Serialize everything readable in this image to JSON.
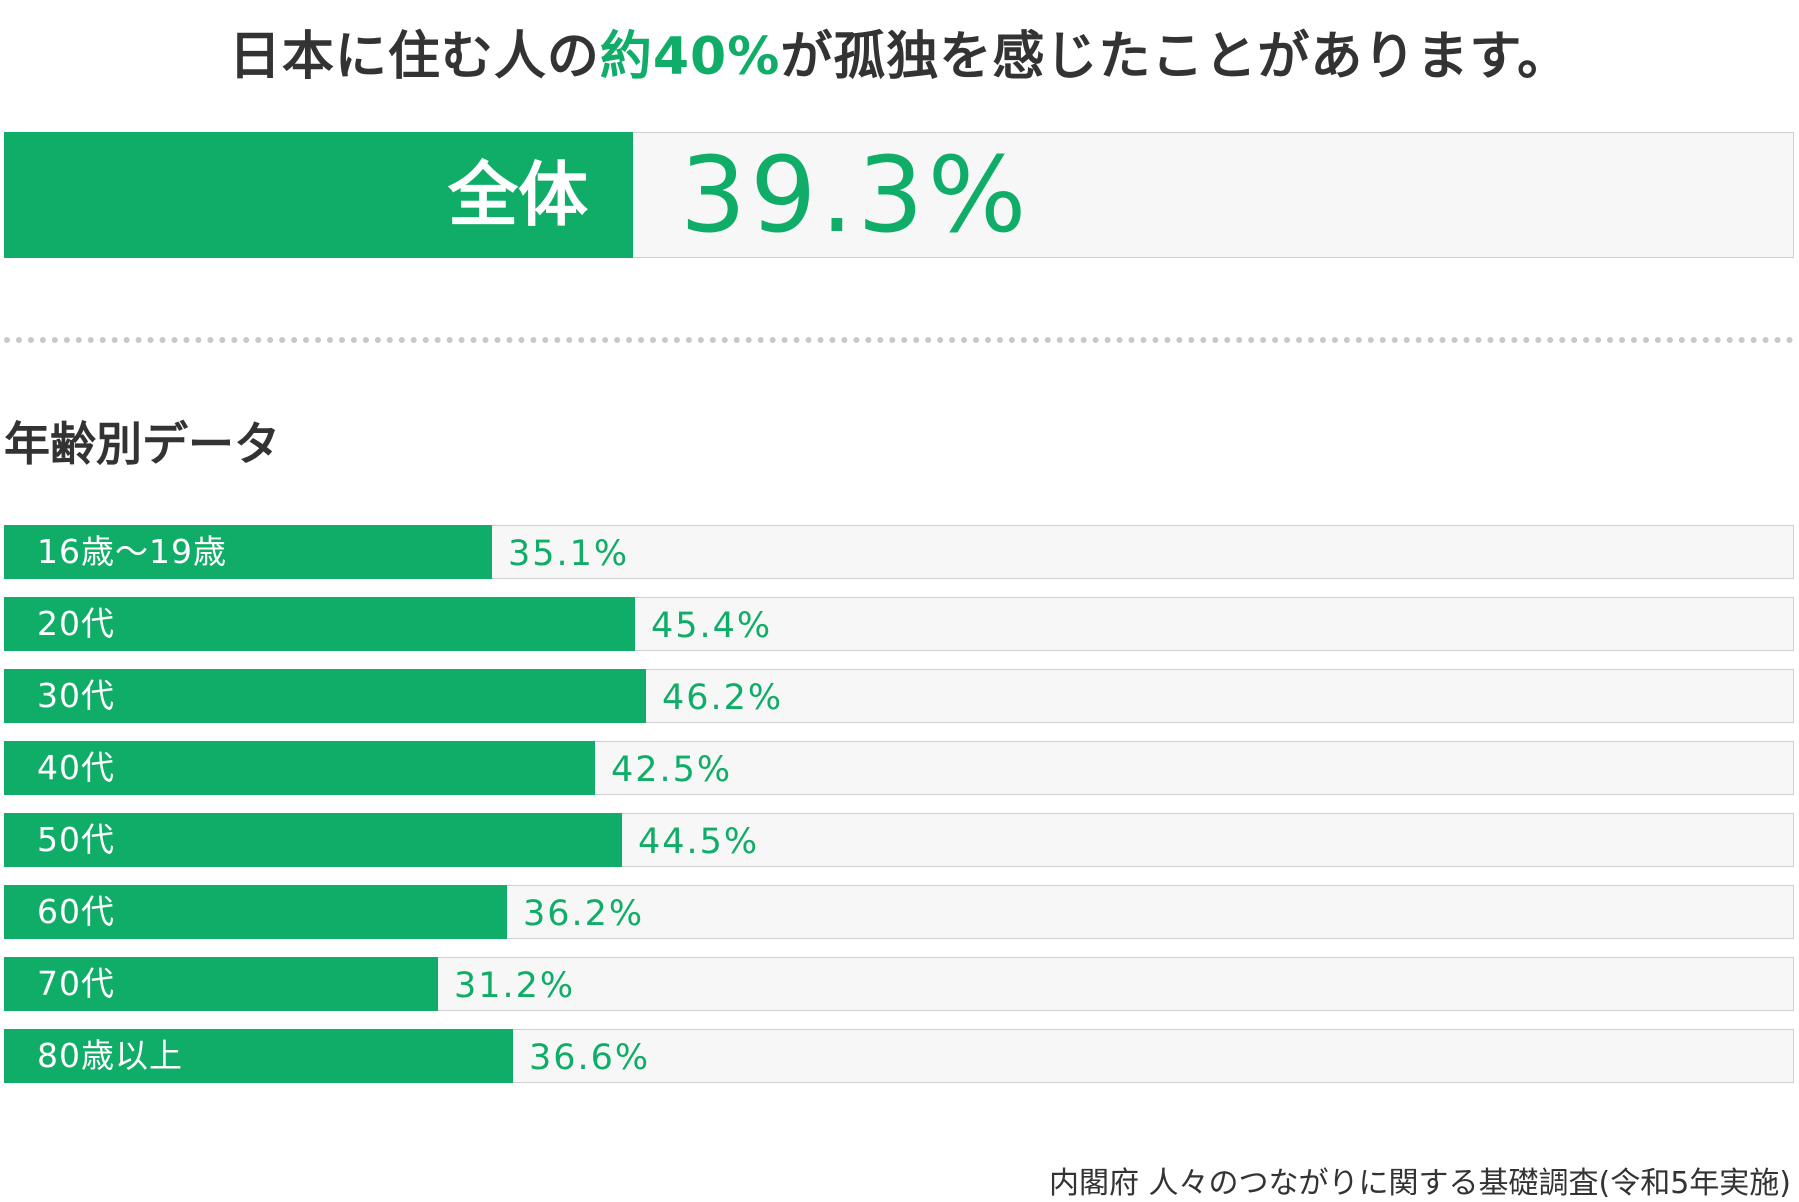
{
  "colors": {
    "accent": "#0fad68",
    "track": "#f7f7f7",
    "text": "#333333"
  },
  "headline": {
    "before": "日本に住む人の",
    "highlight": "約40%",
    "after": "が孤独を感じたことがあります。"
  },
  "overall": {
    "label": "全体",
    "value": 39.3,
    "value_text": "39.3%"
  },
  "section_title": "年齢別データ",
  "chart_data": {
    "type": "bar",
    "orientation": "horizontal",
    "title": "",
    "xlabel": "",
    "ylabel": "",
    "xlim": [
      0,
      100
    ],
    "grid": false,
    "categories": [
      "16歳〜19歳",
      "20代",
      "30代",
      "40代",
      "50代",
      "60代",
      "70代",
      "80歳以上"
    ],
    "values": [
      35.1,
      45.4,
      46.2,
      42.5,
      44.5,
      36.2,
      31.2,
      36.6
    ],
    "value_labels": [
      "35.1%",
      "45.4%",
      "46.2%",
      "42.5%",
      "44.5%",
      "36.2%",
      "31.2%",
      "36.6%"
    ]
  },
  "source": "内閣府 人々のつながりに関する基礎調査(令和5年実施)"
}
